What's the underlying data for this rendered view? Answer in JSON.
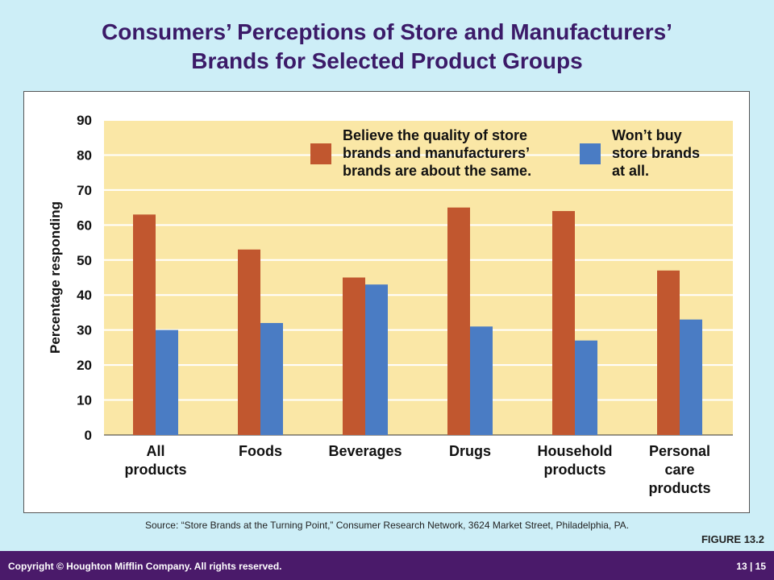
{
  "title": [
    "Consumers’ Perceptions of Store and Manufacturers’",
    "Brands for Selected Product Groups"
  ],
  "source": "Source: “Store Brands at the Turning Point,” Consumer Research Network, 3624 Market Street, Philadelphia, PA.",
  "figure_label": "FIGURE 13.2",
  "footer": {
    "copyright": "Copyright © Houghton Mifflin Company. All rights reserved.",
    "pages": "13  |  15"
  },
  "colors": {
    "background": "#cdeef7",
    "plot_bg": "#fae7a6",
    "orange": "#c1572f",
    "blue": "#4a7cc4",
    "title": "#3b1a68",
    "footer": "#4a1a6a"
  },
  "chart_data": {
    "type": "bar",
    "ylabel": "Percentage responding",
    "ylim": [
      0,
      90
    ],
    "yticks": [
      0,
      10,
      20,
      30,
      40,
      50,
      60,
      70,
      80,
      90
    ],
    "grid": true,
    "legend_position": "top-right",
    "categories": [
      [
        "All",
        "products"
      ],
      [
        "Foods"
      ],
      [
        "Beverages"
      ],
      [
        "Drugs"
      ],
      [
        "Household",
        "products"
      ],
      [
        "Personal",
        "care",
        "products"
      ]
    ],
    "series": [
      {
        "name": [
          "Believe the quality of store",
          "brands and manufacturers’",
          "brands are about the same."
        ],
        "color": "#c1572f",
        "values": [
          63,
          53,
          45,
          65,
          64,
          47
        ]
      },
      {
        "name": [
          "Won’t buy",
          "store brands",
          "at all."
        ],
        "color": "#4a7cc4",
        "values": [
          30,
          32,
          43,
          31,
          27,
          33
        ]
      }
    ]
  }
}
